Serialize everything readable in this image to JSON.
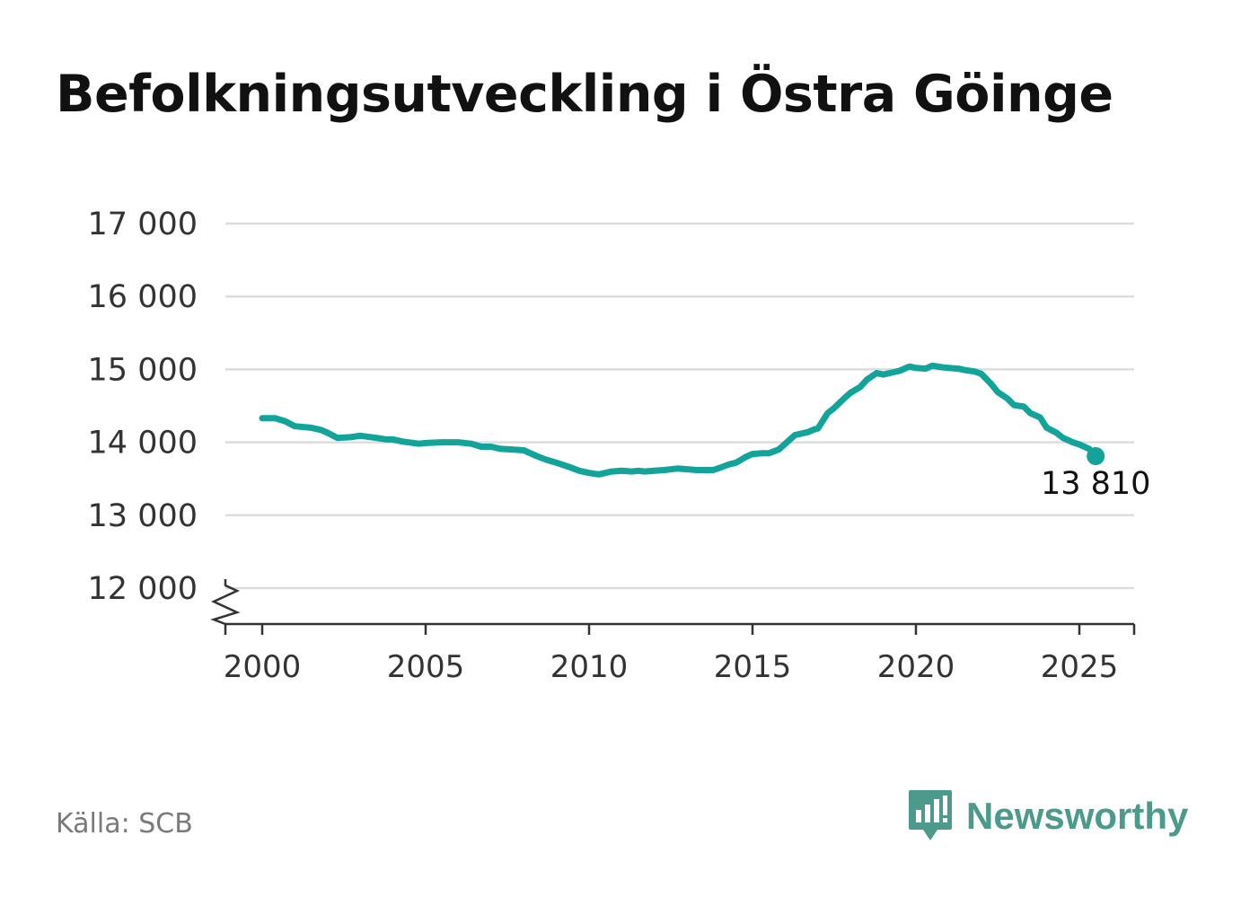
{
  "title": "Befolkningsutveckling i Östra Göinge",
  "source": "Källa: SCB",
  "brand": {
    "name": "Newsworthy",
    "icon": "chart-bubble-icon",
    "color": "#4b9a8b"
  },
  "chart_data": {
    "type": "line",
    "title": "Befolkningsutveckling i Östra Göinge",
    "xlabel": "",
    "ylabel": "",
    "line_color": "#12a39a",
    "grid": true,
    "axis_break": true,
    "xlim": [
      1999,
      2026.7
    ],
    "ylim": [
      11500,
      17000
    ],
    "x_ticks": [
      2000,
      2005,
      2010,
      2015,
      2020,
      2025
    ],
    "x_tick_labels": [
      "2000",
      "2005",
      "2010",
      "2015",
      "2020",
      "2025"
    ],
    "y_ticks": [
      12000,
      13000,
      14000,
      15000,
      16000,
      17000
    ],
    "y_tick_labels": [
      "12 000",
      "13 000",
      "14 000",
      "15 000",
      "16 000",
      "17 000"
    ],
    "last_value_label": "13 810",
    "series": [
      {
        "x": [
          2000.0,
          2000.4,
          2000.7,
          2001.0,
          2001.5,
          2001.8,
          2002.0,
          2002.3,
          2002.7,
          2003.0,
          2003.5,
          2003.8,
          2004.0,
          2004.3,
          2004.8,
          2005.0,
          2005.5,
          2006.0,
          2006.4,
          2006.7,
          2007.0,
          2007.3,
          2007.7,
          2008.0,
          2008.4,
          2008.7,
          2009.0,
          2009.4,
          2009.7,
          2010.0,
          2010.3,
          2010.7,
          2011.0,
          2011.3,
          2011.5,
          2011.7,
          2012.0,
          2012.3,
          2012.7,
          2013.0,
          2013.3,
          2013.5,
          2013.8,
          2014.0,
          2014.3,
          2014.5,
          2014.8,
          2015.0,
          2015.3,
          2015.5,
          2015.8,
          2016.0,
          2016.3,
          2016.7,
          2016.9,
          2017.0,
          2017.3,
          2017.5,
          2017.8,
          2018.0,
          2018.3,
          2018.5,
          2018.8,
          2019.0,
          2019.3,
          2019.5,
          2019.8,
          2020.0,
          2020.3,
          2020.5,
          2020.8,
          2021.0,
          2021.3,
          2021.5,
          2021.8,
          2022.0,
          2022.3,
          2022.5,
          2022.8,
          2023.0,
          2023.3,
          2023.5,
          2023.8,
          2024.0,
          2024.3,
          2024.5,
          2024.8,
          2025.0,
          2025.3,
          2025.5
        ],
        "y": [
          14330,
          14330,
          14290,
          14220,
          14200,
          14170,
          14130,
          14060,
          14070,
          14090,
          14060,
          14040,
          14040,
          14010,
          13980,
          13990,
          14000,
          14000,
          13980,
          13940,
          13940,
          13910,
          13900,
          13890,
          13810,
          13760,
          13720,
          13660,
          13610,
          13580,
          13560,
          13600,
          13610,
          13600,
          13610,
          13600,
          13610,
          13620,
          13640,
          13630,
          13620,
          13620,
          13620,
          13650,
          13700,
          13720,
          13800,
          13840,
          13850,
          13850,
          13900,
          13980,
          14100,
          14140,
          14180,
          14190,
          14400,
          14470,
          14600,
          14680,
          14760,
          14860,
          14950,
          14930,
          14960,
          14980,
          15040,
          15020,
          15010,
          15050,
          15030,
          15020,
          15010,
          14990,
          14970,
          14940,
          14800,
          14690,
          14600,
          14510,
          14490,
          14400,
          14340,
          14200,
          14130,
          14060,
          14000,
          13970,
          13910,
          13810
        ]
      }
    ]
  }
}
